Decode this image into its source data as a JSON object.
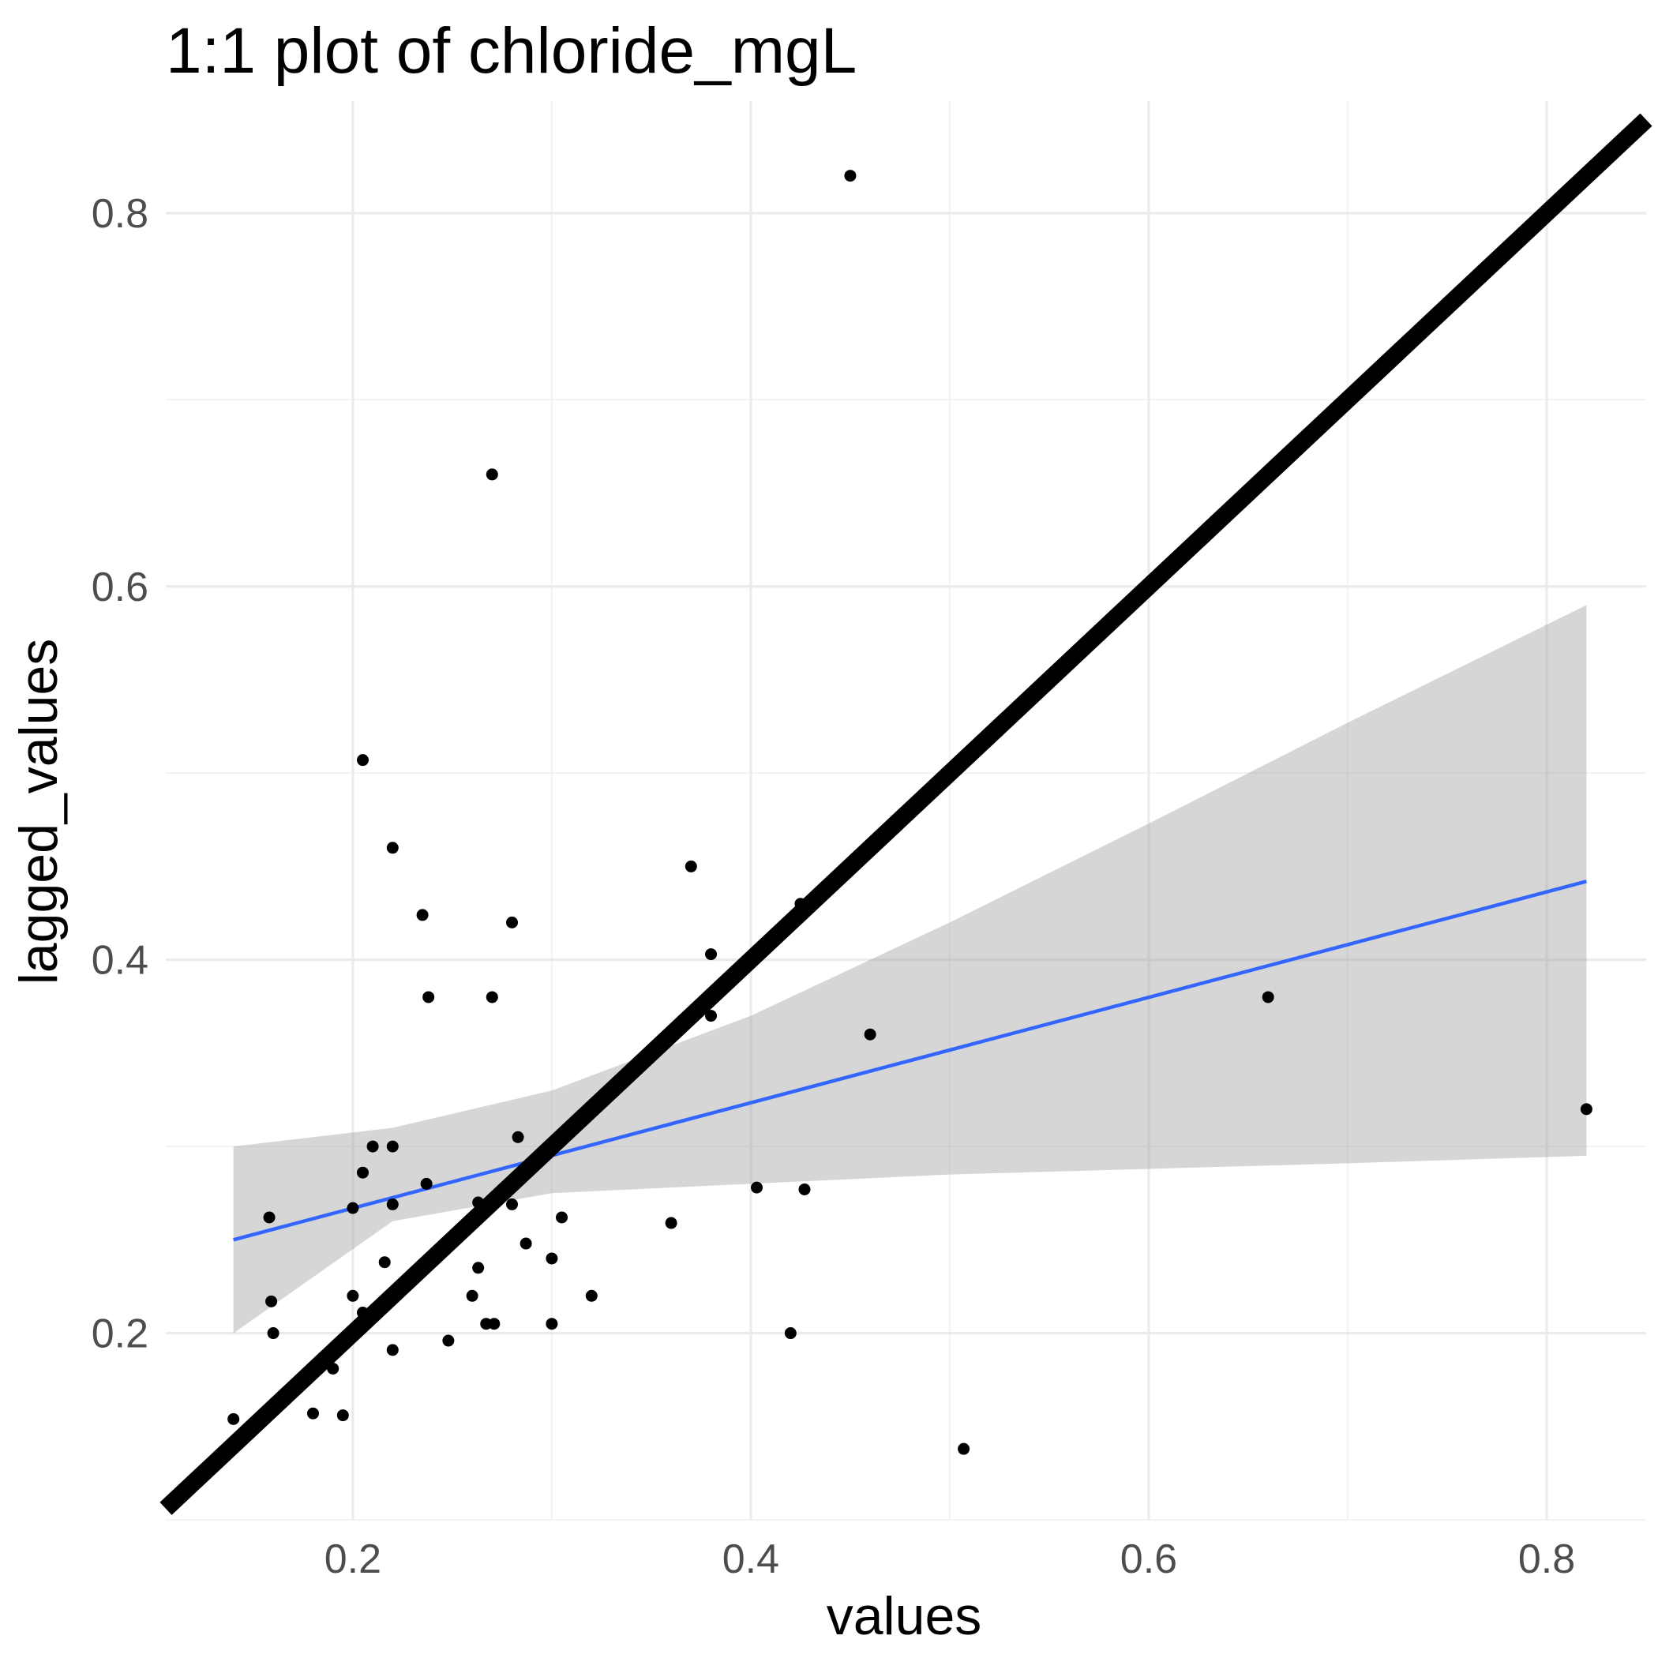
{
  "chart_data": {
    "type": "scatter",
    "title": "1:1 plot of chloride_mgL",
    "xlabel": "values",
    "ylabel": "lagged_values",
    "xlim": [
      0.106,
      0.85
    ],
    "ylim": [
      0.1,
      0.86
    ],
    "x_ticks": [
      0.2,
      0.4,
      0.6,
      0.8
    ],
    "y_ticks": [
      0.2,
      0.4,
      0.6,
      0.8
    ],
    "x_tick_labels": [
      "0.2",
      "0.4",
      "0.6",
      "0.8"
    ],
    "y_tick_labels": [
      "0.2",
      "0.4",
      "0.6",
      "0.8"
    ],
    "grid": true,
    "legend": "none",
    "colors": {
      "points": "#000000",
      "identity_line": "#000000",
      "fit_line": "#3366ff",
      "ribbon": "#999999",
      "grid": "#ebebeb",
      "tick_labels": "#4d4d4d"
    },
    "points": [
      [
        0.45,
        0.82
      ],
      [
        0.27,
        0.66
      ],
      [
        0.205,
        0.507
      ],
      [
        0.22,
        0.46
      ],
      [
        0.235,
        0.424
      ],
      [
        0.28,
        0.42
      ],
      [
        0.37,
        0.45
      ],
      [
        0.38,
        0.403
      ],
      [
        0.238,
        0.38
      ],
      [
        0.27,
        0.38
      ],
      [
        0.38,
        0.37
      ],
      [
        0.46,
        0.36
      ],
      [
        0.66,
        0.38
      ],
      [
        0.82,
        0.32
      ],
      [
        0.21,
        0.3
      ],
      [
        0.22,
        0.3
      ],
      [
        0.283,
        0.305
      ],
      [
        0.205,
        0.286
      ],
      [
        0.237,
        0.28
      ],
      [
        0.403,
        0.278
      ],
      [
        0.427,
        0.277
      ],
      [
        0.2,
        0.267
      ],
      [
        0.22,
        0.269
      ],
      [
        0.263,
        0.27
      ],
      [
        0.28,
        0.269
      ],
      [
        0.305,
        0.262
      ],
      [
        0.158,
        0.262
      ],
      [
        0.36,
        0.259
      ],
      [
        0.287,
        0.248
      ],
      [
        0.3,
        0.24
      ],
      [
        0.216,
        0.238
      ],
      [
        0.263,
        0.235
      ],
      [
        0.2,
        0.22
      ],
      [
        0.26,
        0.22
      ],
      [
        0.32,
        0.22
      ],
      [
        0.159,
        0.217
      ],
      [
        0.205,
        0.211
      ],
      [
        0.267,
        0.205
      ],
      [
        0.271,
        0.205
      ],
      [
        0.3,
        0.205
      ],
      [
        0.16,
        0.2
      ],
      [
        0.42,
        0.2
      ],
      [
        0.248,
        0.196
      ],
      [
        0.22,
        0.191
      ],
      [
        0.19,
        0.181
      ],
      [
        0.18,
        0.157
      ],
      [
        0.195,
        0.156
      ],
      [
        0.14,
        0.154
      ],
      [
        0.507,
        0.138
      ],
      [
        0.425,
        0.43
      ]
    ],
    "identity_line": {
      "from": [
        0.106,
        0.106
      ],
      "to": [
        0.85,
        0.85
      ]
    },
    "fit_line": {
      "from": [
        0.14,
        0.25
      ],
      "to": [
        0.82,
        0.442
      ]
    },
    "confidence_band": {
      "x": [
        0.14,
        0.22,
        0.3,
        0.4,
        0.5,
        0.6,
        0.7,
        0.82
      ],
      "upper": [
        0.3,
        0.31,
        0.33,
        0.37,
        0.42,
        0.473,
        0.527,
        0.59
      ],
      "lower": [
        0.2,
        0.26,
        0.275,
        0.28,
        0.285,
        0.288,
        0.291,
        0.295
      ]
    }
  }
}
